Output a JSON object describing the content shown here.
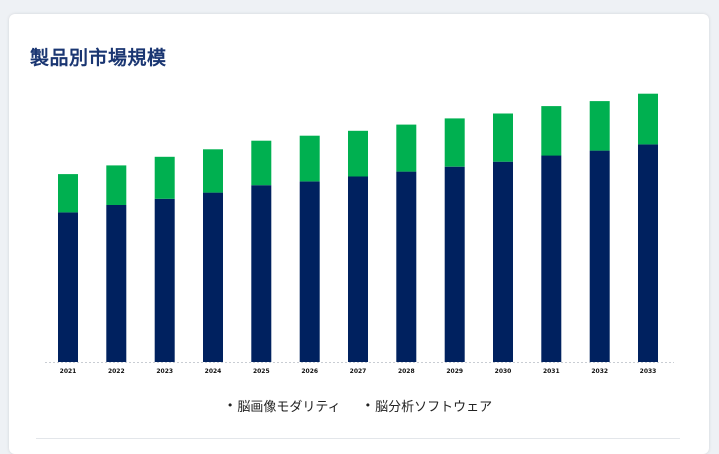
{
  "page": {
    "title": "製品別市場規模"
  },
  "chart_data": {
    "type": "bar",
    "stacked": true,
    "categories": [
      "2021",
      "2022",
      "2023",
      "2024",
      "2025",
      "2026",
      "2027",
      "2028",
      "2029",
      "2030",
      "2031",
      "2032",
      "2033"
    ],
    "series": [
      {
        "name": "脳画像モダリティ",
        "color": "#00215f",
        "values": [
          121,
          127,
          132,
          137,
          143,
          146,
          150,
          154,
          158,
          162,
          167,
          171,
          176
        ]
      },
      {
        "name": "脳分析ソフトウェア",
        "color": "#00b050",
        "values": [
          31,
          32,
          34,
          35,
          36,
          37,
          37,
          38,
          39,
          39,
          40,
          40,
          41
        ]
      }
    ],
    "ylim": [
      0,
      220
    ],
    "grid": false,
    "y_axis_visible": false,
    "legend_position": "bottom"
  }
}
